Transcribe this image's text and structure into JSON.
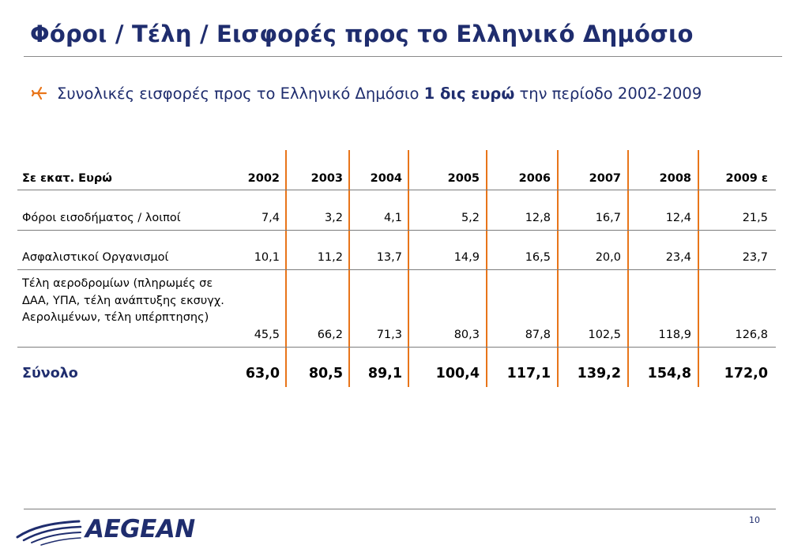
{
  "title": "Φόροι / Τέλη / Εισφορές προς το Ελληνικό Δημόσιο",
  "bullet": {
    "text_before": "Συνολικές εισφορές προς το Ελληνικό Δημόσιο ",
    "text_bold": "1 δις ευρώ",
    "text_after": " την περίοδο 2002-2009"
  },
  "table": {
    "header": [
      "Σε εκατ. Ευρώ",
      "2002",
      "2003",
      "2004",
      "2005",
      "2006",
      "2007",
      "2008",
      "2009 ε"
    ],
    "rows": [
      {
        "label": "Φόροι εισοδήματος / λοιποί",
        "values": [
          "7,4",
          "3,2",
          "4,1",
          "5,2",
          "12,8",
          "16,7",
          "12,4",
          "21,5"
        ]
      },
      {
        "label": "Ασφαλιστικοί Οργανισμοί",
        "values": [
          "10,1",
          "11,2",
          "13,7",
          "14,9",
          "16,5",
          "20,0",
          "23,4",
          "23,7"
        ]
      },
      {
        "label": "Τέλη αεροδρομίων  (πληρωμές σε ΔΑΑ, ΥΠΑ, τέλη ανάπτυξης εκσυγχ. Αερολιμένων, τέλη υπέρπτησης)",
        "values": [
          "45,5",
          "66,2",
          "71,3",
          "80,3",
          "87,8",
          "102,5",
          "118,9",
          "126,8"
        ]
      }
    ],
    "total": {
      "label": "Σύνολο",
      "values": [
        "63,0",
        "80,5",
        "89,1",
        "100,4",
        "117,1",
        "139,2",
        "154,8",
        "172,0"
      ]
    }
  },
  "footer": {
    "page_number": "10",
    "logo_text": "AEGEAN"
  },
  "colors": {
    "title": "#1f2d6e",
    "accent": "#e8751a",
    "rule": "#7d7d7d"
  },
  "icons": {
    "bullet": "airplane-icon",
    "logo": "aegean-bird-logo-icon"
  }
}
